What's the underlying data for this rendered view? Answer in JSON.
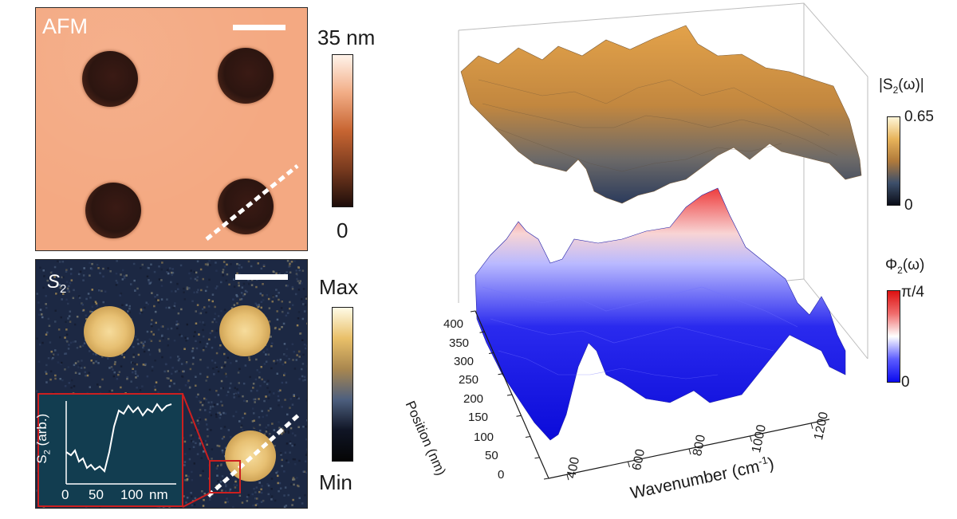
{
  "afm_panel": {
    "label": "AFM",
    "colorbar": {
      "max": "35 nm",
      "min": "0",
      "colors": [
        "#fff3ea",
        "#f2ad86",
        "#c76532",
        "#7a3b1f",
        "#1d0d0a"
      ]
    }
  },
  "s2_panel": {
    "label": "S",
    "label_sub": "2",
    "colorbar": {
      "max": "Max",
      "min": "Min",
      "colors": [
        "#fffbe6",
        "#e9c069",
        "#a9874f",
        "#4d5f7e",
        "#101525",
        "#050505"
      ]
    },
    "inset": {
      "ylabel": "S",
      "ylabel_sub": "2",
      "ylabel_unit": "(arb.)",
      "xticks": [
        "0",
        "50",
        "100"
      ],
      "xunit": "nm",
      "frame_color": "#cc1f1f"
    }
  },
  "chart_data": {
    "type": "surface3d",
    "x_axis": {
      "label": "Wavenumber (cm",
      "label_sup": "-1",
      "label_end": ")",
      "ticks": [
        "400",
        "600",
        "800",
        "1000",
        "1200"
      ]
    },
    "y_axis": {
      "label": "Position (nm)",
      "ticks": [
        "0",
        "50",
        "100",
        "150",
        "200",
        "250",
        "300",
        "350",
        "400"
      ]
    },
    "surfaces": [
      {
        "name": "|S",
        "name_sub": "2",
        "name_end": "(ω)|",
        "colorbar_max": "0.65",
        "colorbar_min": "0",
        "colors": [
          "#fff6d8",
          "#e7b35a",
          "#b07a3b",
          "#3d4f6b",
          "#0a0d18"
        ]
      },
      {
        "name": "Φ",
        "name_sub": "2",
        "name_end": "(ω)",
        "colorbar_max": "π/4",
        "colorbar_min": "0",
        "colors": [
          "#dd1111",
          "#f06d6d",
          "#ffffff",
          "#5d5dff",
          "#0a0aee"
        ]
      }
    ]
  }
}
